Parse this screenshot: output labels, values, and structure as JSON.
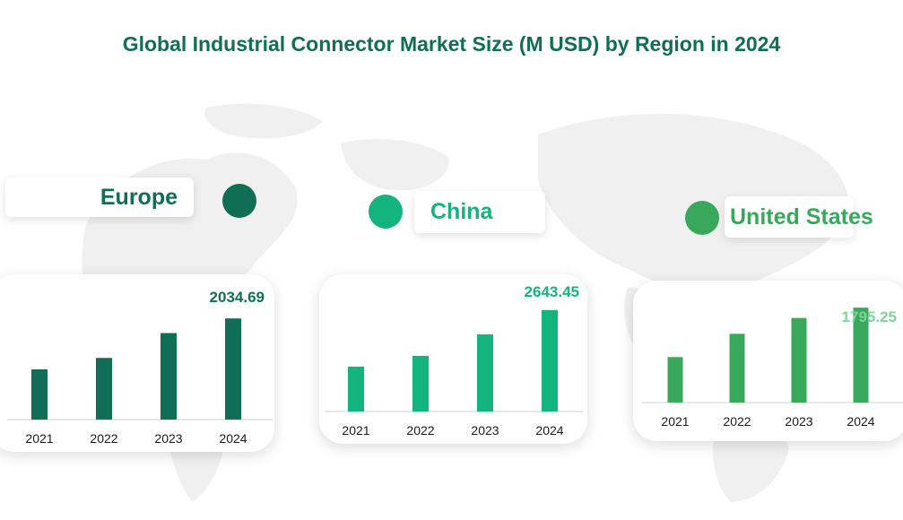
{
  "title": "Global Industrial Connector Market Size (M USD) by Region in 2024",
  "colors": {
    "title": "#106e57",
    "europe": "#106e57",
    "china": "#13b47e",
    "united_states": "#38a95b",
    "united_states_value": "#7fd39b",
    "axis": "#d9d9d9",
    "map": "#f0f0f0"
  },
  "regions": {
    "europe": {
      "name": "Europe"
    },
    "china": {
      "name": "China"
    },
    "united_states": {
      "name": "United States"
    }
  },
  "chart_data": [
    {
      "type": "bar",
      "region": "Europe",
      "categories": [
        "2021",
        "2022",
        "2023",
        "2024"
      ],
      "values": [
        1010,
        1240,
        1740,
        2034.69
      ],
      "data_labels": [
        "",
        "",
        "",
        "2034.69"
      ],
      "ylim": [
        0,
        2200
      ],
      "grid": false
    },
    {
      "type": "bar",
      "region": "China",
      "categories": [
        "2021",
        "2022",
        "2023",
        "2024"
      ],
      "values": [
        1170,
        1450,
        2010,
        2643.45
      ],
      "data_labels": [
        "",
        "",
        "",
        "2643.45"
      ],
      "ylim": [
        0,
        2850
      ],
      "grid": false
    },
    {
      "type": "bar",
      "region": "United States",
      "categories": [
        "2021",
        "2022",
        "2023",
        "2024"
      ],
      "values": [
        860,
        1300,
        1600,
        1795.25
      ],
      "data_labels": [
        "",
        "",
        "",
        "1795.25"
      ],
      "ylim": [
        0,
        1950
      ],
      "grid": false
    }
  ]
}
